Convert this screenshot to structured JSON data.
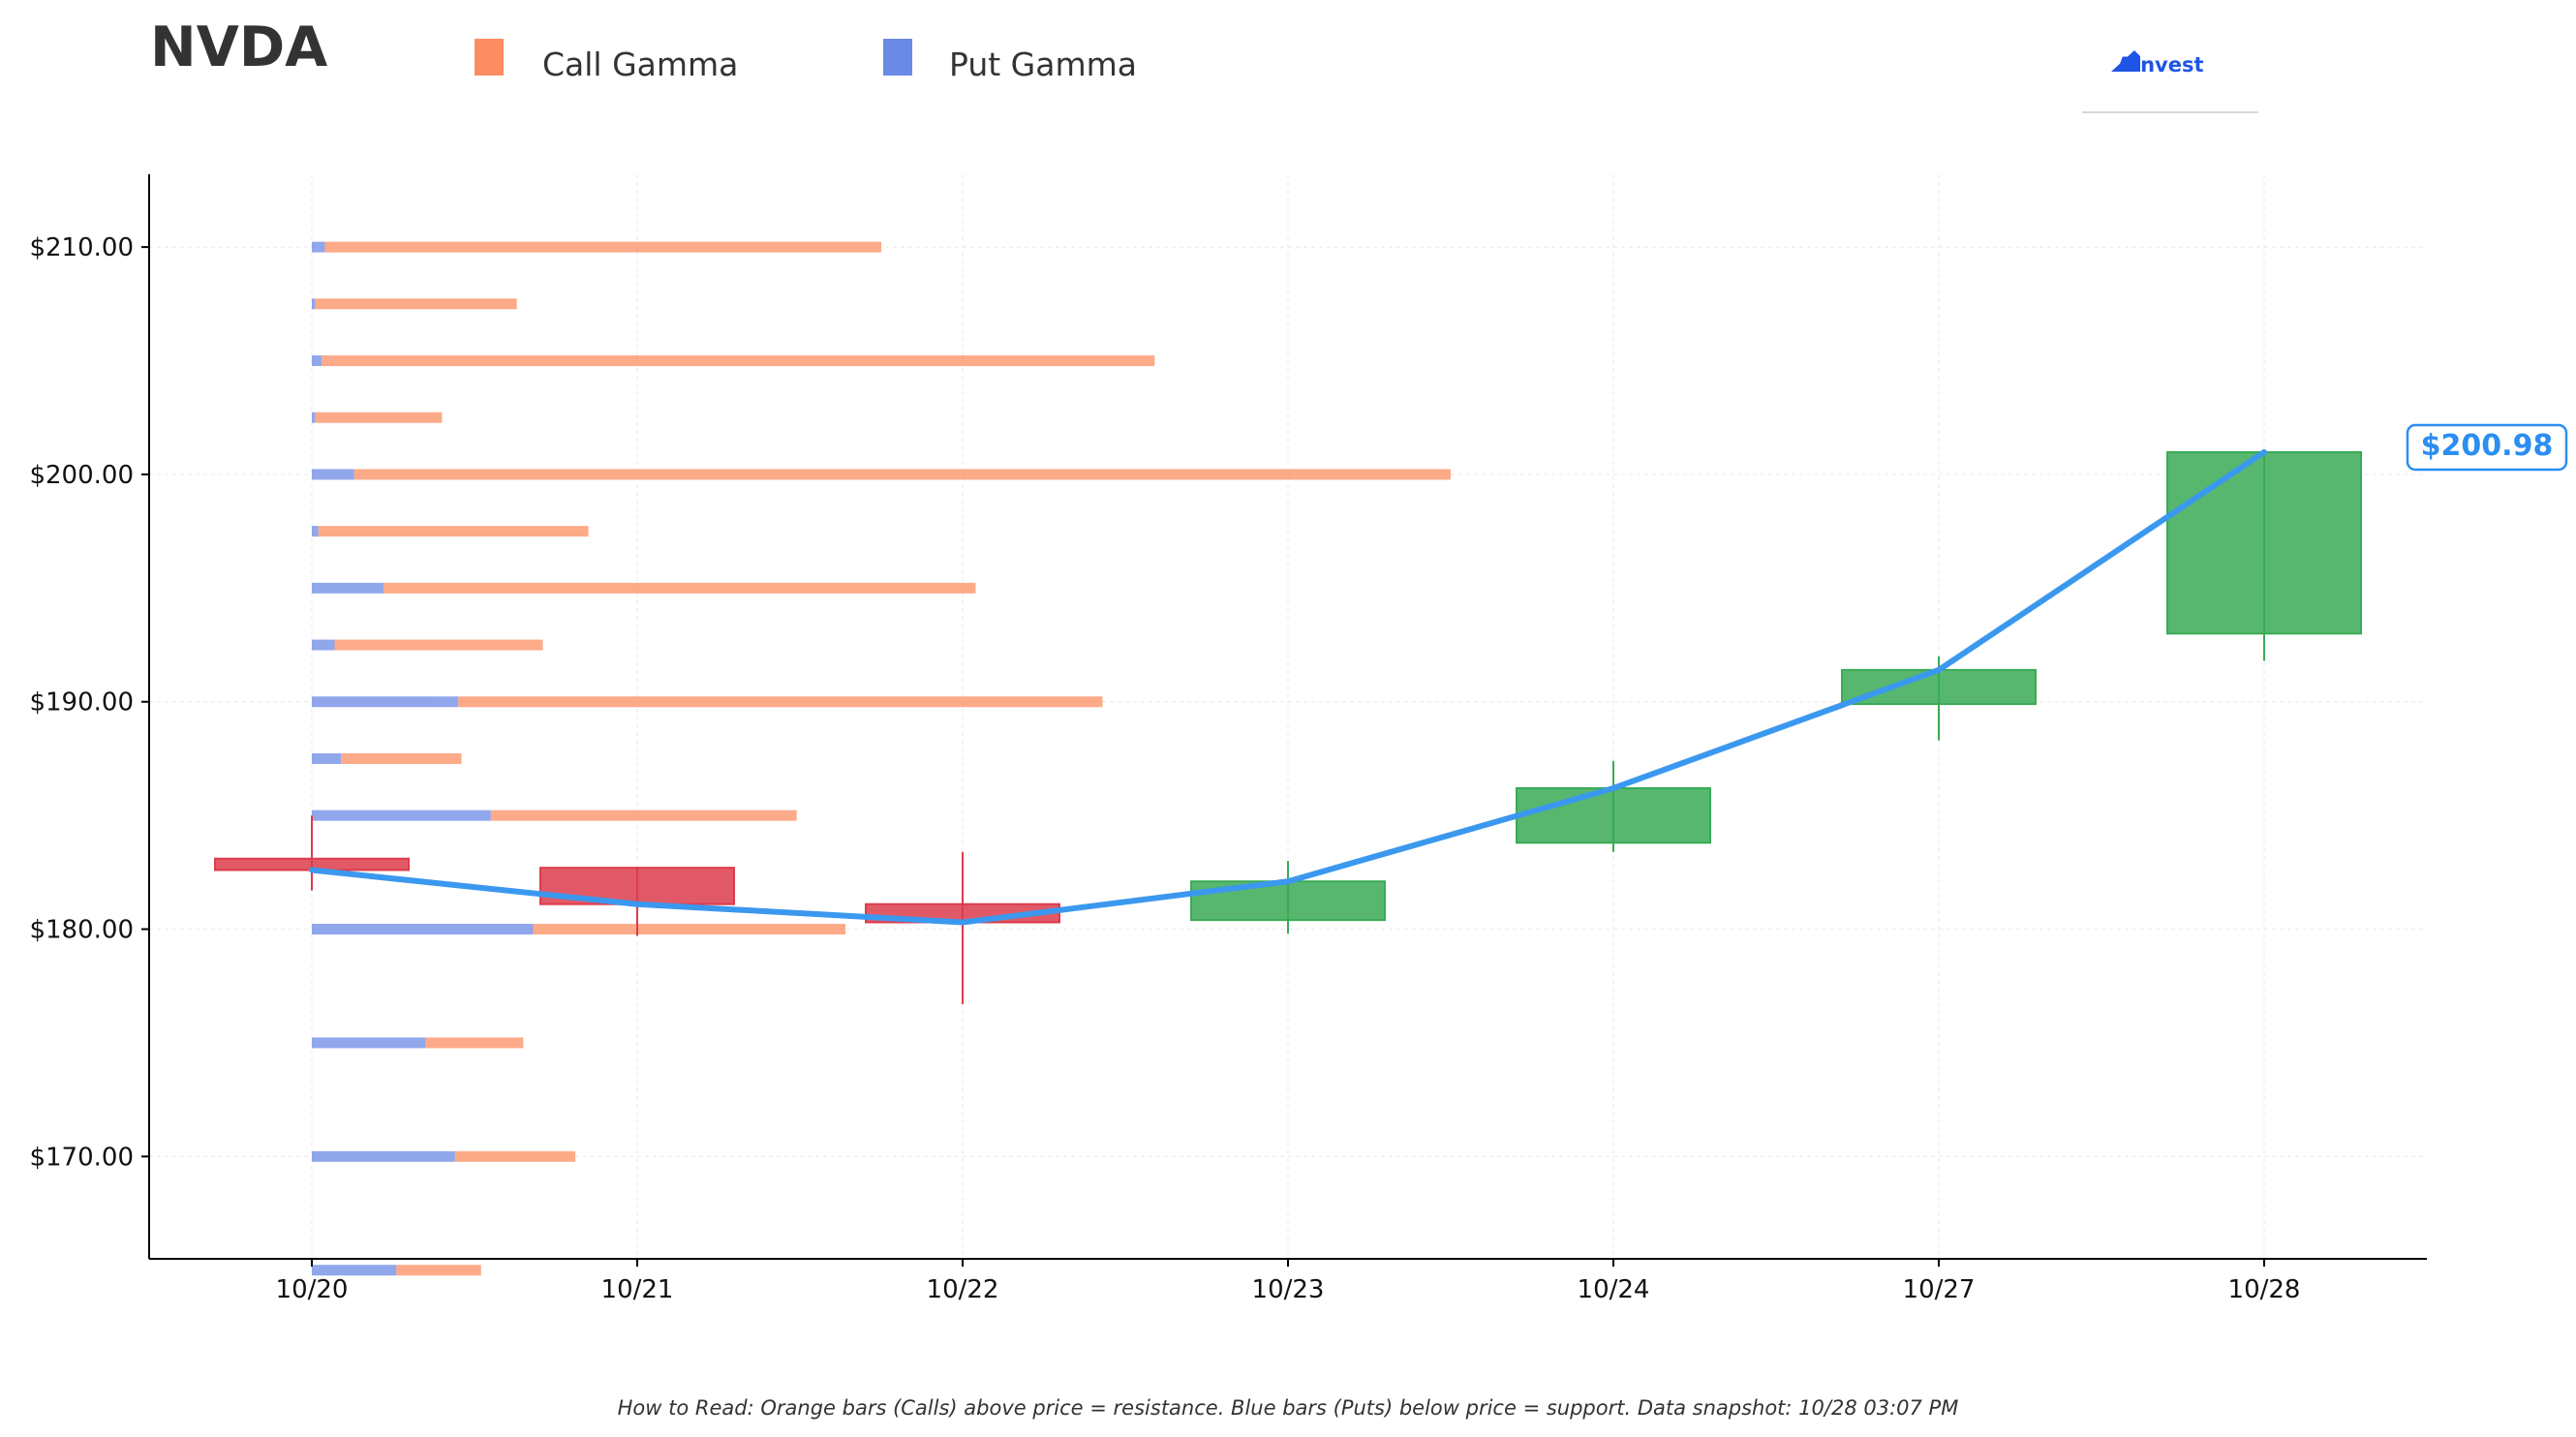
{
  "brand": {
    "name": "AInvest",
    "color": "#1e55e6"
  },
  "colors": {
    "call": "#fc8d62",
    "put": "#6b8ae6",
    "up": "#3aaa55",
    "down": "#dc3c4c",
    "line": "#3b98ef",
    "price_label": "#2b8ef0"
  },
  "chart_data": {
    "type": "candlestick",
    "title": "NVDA",
    "legend": [
      {
        "name": "Call Gamma",
        "color": "#fc8d62"
      },
      {
        "name": "Put Gamma",
        "color": "#6b8ae6"
      }
    ],
    "legend_position": "top",
    "x_categories": [
      "10/20",
      "10/21",
      "10/22",
      "10/23",
      "10/24",
      "10/27",
      "10/28"
    ],
    "ylim": [
      165.5,
      213.2
    ],
    "y_ticks": [
      170,
      180,
      190,
      200,
      210
    ],
    "y_tick_labels": [
      "$170.00",
      "$180.00",
      "$190.00",
      "$200.00",
      "$210.00"
    ],
    "grid": true,
    "candles": [
      {
        "date": "10/20",
        "open": 183.1,
        "high": 185.0,
        "low": 181.7,
        "close": 182.6
      },
      {
        "date": "10/21",
        "open": 182.7,
        "high": 182.7,
        "low": 179.7,
        "close": 181.1
      },
      {
        "date": "10/22",
        "open": 181.1,
        "high": 183.4,
        "low": 176.7,
        "close": 180.3
      },
      {
        "date": "10/23",
        "open": 180.4,
        "high": 183.0,
        "low": 179.8,
        "close": 182.1
      },
      {
        "date": "10/24",
        "open": 183.8,
        "high": 187.4,
        "low": 183.4,
        "close": 186.2
      },
      {
        "date": "10/27",
        "open": 189.9,
        "high": 192.0,
        "low": 188.3,
        "close": 191.4
      },
      {
        "date": "10/28",
        "open": 193.0,
        "high": 201.0,
        "low": 191.8,
        "close": 200.98
      }
    ],
    "close_line": {
      "name": "Close",
      "values": [
        182.6,
        181.1,
        180.3,
        182.1,
        186.2,
        191.4,
        200.98
      ]
    },
    "last_price_label": "$200.98",
    "gamma_by_strike": {
      "unit": "trading days (horizontal extent from 10/20)",
      "strikes": [
        165,
        170,
        175,
        180,
        185,
        187.5,
        190,
        192.5,
        195,
        197.5,
        200,
        202.5,
        205,
        207.5,
        210
      ],
      "put_gamma": [
        0.26,
        0.44,
        0.35,
        0.68,
        0.55,
        0.09,
        0.45,
        0.07,
        0.22,
        0.02,
        0.13,
        0.01,
        0.03,
        0.01,
        0.04
      ],
      "call_gamma": [
        0.26,
        0.37,
        0.3,
        0.96,
        0.94,
        0.37,
        1.98,
        0.64,
        1.82,
        0.83,
        3.37,
        0.39,
        2.56,
        0.62,
        1.71
      ]
    },
    "footnote": "How to Read: Orange bars (Calls) above price = resistance. Blue bars (Puts) below price = support. Data snapshot: 10/28 03:07 PM"
  }
}
